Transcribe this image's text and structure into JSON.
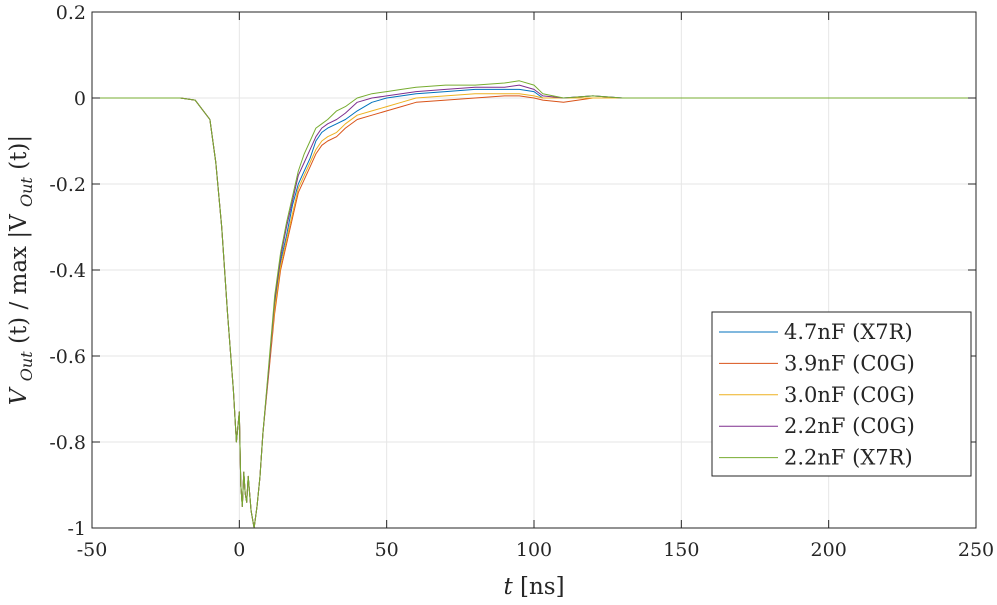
{
  "chart_data": {
    "type": "line",
    "xlabel": {
      "var": "t",
      "unit": "[ns]"
    },
    "ylabel": {
      "v": "V",
      "sub": "Out",
      "mid": "(t) / max |V",
      "end": "(t)|"
    },
    "xlim": [
      -50,
      250
    ],
    "ylim": [
      -1,
      0.2
    ],
    "xticks": [
      -50,
      0,
      50,
      100,
      150,
      200,
      250
    ],
    "yticks": [
      -1,
      -0.8,
      -0.6,
      -0.4,
      -0.2,
      0,
      0.2
    ],
    "xtick_labels": [
      "-50",
      "0",
      "50",
      "100",
      "150",
      "200",
      "250"
    ],
    "ytick_labels": [
      "-1",
      "-0.8",
      "-0.6",
      "-0.4",
      "-0.2",
      "0",
      "0.2"
    ],
    "grid": true,
    "legend_position": "bottom-right",
    "series": [
      {
        "name": "4.7nF (X7R)",
        "color": "#0072BD",
        "x": [
          -50,
          -30,
          -20,
          -15,
          -10,
          -8,
          -6,
          -4,
          -2,
          -1,
          0,
          0.5,
          1,
          1.5,
          2,
          2.5,
          3,
          4,
          5,
          6,
          7,
          8,
          10,
          12,
          14,
          16,
          18,
          20,
          22,
          24,
          26,
          28,
          30,
          33,
          36,
          40,
          45,
          50,
          55,
          60,
          70,
          80,
          90,
          95,
          100,
          103,
          110,
          120,
          130,
          150,
          200,
          250
        ],
        "y": [
          0,
          0,
          0,
          -0.005,
          -0.05,
          -0.15,
          -0.3,
          -0.5,
          -0.68,
          -0.8,
          -0.73,
          -0.9,
          -0.95,
          -0.87,
          -0.92,
          -0.94,
          -0.88,
          -0.96,
          -1.0,
          -0.95,
          -0.88,
          -0.78,
          -0.63,
          -0.48,
          -0.38,
          -0.32,
          -0.25,
          -0.2,
          -0.17,
          -0.14,
          -0.1,
          -0.08,
          -0.07,
          -0.06,
          -0.05,
          -0.03,
          -0.01,
          0.0,
          0.005,
          0.01,
          0.015,
          0.02,
          0.02,
          0.02,
          0.015,
          0.0,
          0.0,
          0.005,
          0.0,
          0.0,
          0.0,
          0.0
        ]
      },
      {
        "name": "3.9nF (C0G)",
        "color": "#D95319",
        "x": [
          -50,
          -30,
          -20,
          -15,
          -10,
          -8,
          -6,
          -4,
          -2,
          -1,
          0,
          0.5,
          1,
          1.5,
          2,
          2.5,
          3,
          4,
          5,
          6,
          7,
          8,
          10,
          12,
          14,
          16,
          18,
          20,
          22,
          24,
          26,
          28,
          30,
          33,
          36,
          40,
          45,
          50,
          55,
          60,
          70,
          80,
          90,
          95,
          100,
          103,
          110,
          120,
          130,
          150,
          200,
          250
        ],
        "y": [
          0,
          0,
          0,
          -0.005,
          -0.05,
          -0.15,
          -0.3,
          -0.5,
          -0.68,
          -0.8,
          -0.73,
          -0.9,
          -0.95,
          -0.87,
          -0.92,
          -0.94,
          -0.88,
          -0.96,
          -1.0,
          -0.95,
          -0.88,
          -0.78,
          -0.64,
          -0.5,
          -0.4,
          -0.34,
          -0.28,
          -0.22,
          -0.19,
          -0.16,
          -0.13,
          -0.11,
          -0.1,
          -0.09,
          -0.07,
          -0.05,
          -0.04,
          -0.03,
          -0.02,
          -0.01,
          -0.005,
          0.0,
          0.005,
          0.005,
          0.0,
          -0.005,
          -0.01,
          0.0,
          0.0,
          0.0,
          0.0,
          0.0
        ]
      },
      {
        "name": "3.0nF (C0G)",
        "color": "#EDB120",
        "x": [
          -50,
          -30,
          -20,
          -15,
          -10,
          -8,
          -6,
          -4,
          -2,
          -1,
          0,
          0.5,
          1,
          1.5,
          2,
          2.5,
          3,
          4,
          5,
          6,
          7,
          8,
          10,
          12,
          14,
          16,
          18,
          20,
          22,
          24,
          26,
          28,
          30,
          33,
          36,
          40,
          45,
          50,
          55,
          60,
          70,
          80,
          90,
          95,
          100,
          103,
          110,
          120,
          130,
          150,
          200,
          250
        ],
        "y": [
          0,
          0,
          0,
          -0.005,
          -0.05,
          -0.15,
          -0.3,
          -0.5,
          -0.68,
          -0.8,
          -0.73,
          -0.9,
          -0.95,
          -0.87,
          -0.92,
          -0.94,
          -0.88,
          -0.96,
          -1.0,
          -0.95,
          -0.88,
          -0.78,
          -0.63,
          -0.49,
          -0.39,
          -0.33,
          -0.27,
          -0.21,
          -0.18,
          -0.15,
          -0.12,
          -0.1,
          -0.09,
          -0.08,
          -0.06,
          -0.04,
          -0.03,
          -0.02,
          -0.01,
          0.0,
          0.005,
          0.01,
          0.01,
          0.01,
          0.005,
          0.0,
          0.0,
          0.0,
          0.0,
          0.0,
          0.0,
          0.0
        ]
      },
      {
        "name": "2.2nF (C0G)",
        "color": "#7E2F8E",
        "x": [
          -50,
          -30,
          -20,
          -15,
          -10,
          -8,
          -6,
          -4,
          -2,
          -1,
          0,
          0.5,
          1,
          1.5,
          2,
          2.5,
          3,
          4,
          5,
          6,
          7,
          8,
          10,
          12,
          14,
          16,
          18,
          20,
          22,
          24,
          26,
          28,
          30,
          33,
          36,
          40,
          45,
          50,
          55,
          60,
          70,
          80,
          90,
          95,
          100,
          103,
          110,
          120,
          130,
          150,
          200,
          250
        ],
        "y": [
          0,
          0,
          0,
          -0.005,
          -0.05,
          -0.15,
          -0.3,
          -0.5,
          -0.68,
          -0.8,
          -0.73,
          -0.9,
          -0.95,
          -0.87,
          -0.92,
          -0.94,
          -0.88,
          -0.96,
          -1.0,
          -0.95,
          -0.88,
          -0.78,
          -0.63,
          -0.47,
          -0.37,
          -0.3,
          -0.24,
          -0.18,
          -0.15,
          -0.12,
          -0.09,
          -0.07,
          -0.06,
          -0.05,
          -0.035,
          -0.01,
          0.0,
          0.005,
          0.01,
          0.015,
          0.02,
          0.025,
          0.025,
          0.03,
          0.02,
          0.005,
          0.0,
          0.005,
          0.0,
          0.0,
          0.0,
          0.0
        ]
      },
      {
        "name": "2.2nF (X7R)",
        "color": "#77AC30",
        "x": [
          -50,
          -30,
          -20,
          -15,
          -10,
          -8,
          -6,
          -4,
          -2,
          -1,
          0,
          0.5,
          1,
          1.5,
          2,
          2.5,
          3,
          4,
          5,
          6,
          7,
          8,
          10,
          12,
          14,
          16,
          18,
          20,
          22,
          24,
          26,
          28,
          30,
          33,
          36,
          40,
          45,
          50,
          55,
          60,
          70,
          80,
          90,
          95,
          100,
          103,
          110,
          120,
          130,
          150,
          200,
          250
        ],
        "y": [
          0,
          0,
          0,
          -0.005,
          -0.05,
          -0.15,
          -0.3,
          -0.5,
          -0.68,
          -0.8,
          -0.73,
          -0.9,
          -0.95,
          -0.87,
          -0.92,
          -0.94,
          -0.88,
          -0.96,
          -1.0,
          -0.95,
          -0.88,
          -0.78,
          -0.62,
          -0.46,
          -0.36,
          -0.29,
          -0.23,
          -0.17,
          -0.13,
          -0.1,
          -0.07,
          -0.06,
          -0.05,
          -0.03,
          -0.02,
          0.0,
          0.01,
          0.015,
          0.02,
          0.025,
          0.03,
          0.03,
          0.035,
          0.04,
          0.03,
          0.01,
          0.0,
          0.005,
          0.0,
          0.0,
          0.0,
          0.0
        ]
      }
    ]
  }
}
